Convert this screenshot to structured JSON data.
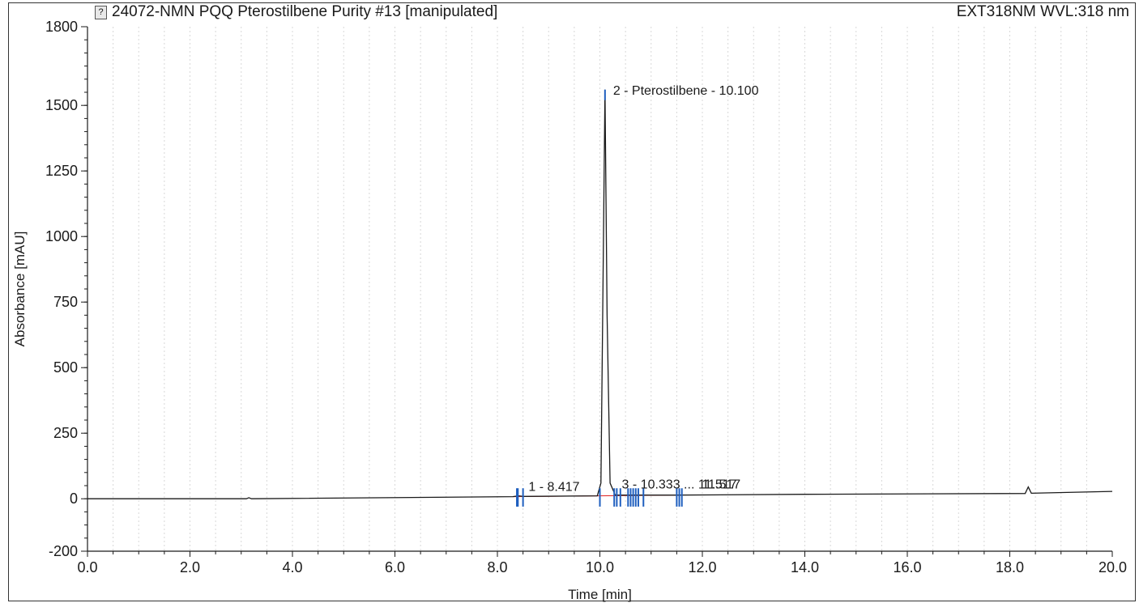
{
  "header": {
    "title": "24072-NMN PQQ Pterostilbene Purity #13 [manipulated]",
    "channel": "EXT318NM WVL:318 nm",
    "icon": "chromatogram-icon"
  },
  "chart_data": {
    "type": "line",
    "title": "24072-NMN PQQ Pterostilbene Purity #13 [manipulated]",
    "xlabel": "Time [min]",
    "ylabel": "Absorbance [mAU]",
    "xlim": [
      0,
      20
    ],
    "ylim": [
      -200,
      1800
    ],
    "x_ticks": [
      "0.0",
      "2.0",
      "4.0",
      "6.0",
      "8.0",
      "10.0",
      "12.0",
      "14.0",
      "16.0",
      "18.0",
      "20.0"
    ],
    "y_ticks": [
      "-200",
      "0",
      "250",
      "500",
      "750",
      "1000",
      "1250",
      "1500",
      "1800"
    ],
    "grid": "vertical",
    "line_color": "#1a1a1a",
    "marker_color": "#1f5fbf",
    "baseline_color": "#e02020",
    "series": [
      {
        "points": [
          [
            0,
            0
          ],
          [
            3.1,
            0
          ],
          [
            3.15,
            4
          ],
          [
            3.2,
            0
          ],
          [
            8.3,
            8
          ],
          [
            8.42,
            11
          ],
          [
            8.5,
            9
          ],
          [
            9.95,
            11
          ],
          [
            10.02,
            60
          ],
          [
            10.06,
            800
          ],
          [
            10.1,
            1560
          ],
          [
            10.14,
            700
          ],
          [
            10.2,
            60
          ],
          [
            10.3,
            14
          ],
          [
            11.5,
            14
          ],
          [
            14,
            17
          ],
          [
            18.3,
            20
          ],
          [
            18.36,
            45
          ],
          [
            18.42,
            21
          ],
          [
            20,
            28
          ]
        ]
      }
    ],
    "annotations": [
      {
        "text": "1 - 8.417",
        "x": 8.417,
        "y": 11
      },
      {
        "text": "2 - Pterostilbene - 10.100",
        "x": 10.1,
        "y": 1560
      },
      {
        "text": "3 - 10.333 ... 11.517",
        "x": 10.333,
        "y": 14
      },
      {
        "text": "11.517",
        "x": 11.517,
        "y": 14
      }
    ],
    "markers": [
      8.38,
      8.4,
      8.5,
      10.0,
      10.28,
      10.33,
      10.4,
      10.55,
      10.6,
      10.65,
      10.7,
      10.75,
      10.85,
      11.5,
      11.55,
      11.6
    ]
  }
}
